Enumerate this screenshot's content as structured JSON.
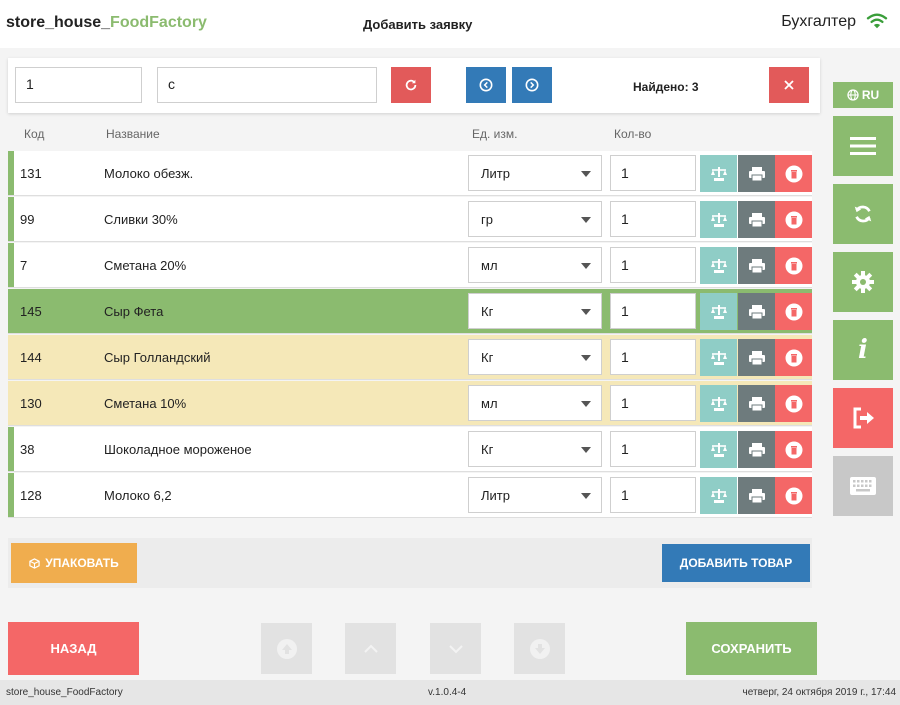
{
  "header": {
    "brand_part1": "store_house_",
    "brand_part2": "FoodFactory",
    "title": "Добавить заявку",
    "user": "Бухгалтер",
    "wifi_icon": "wifi-icon"
  },
  "search": {
    "code_value": "1",
    "name_value": "с",
    "found": "Найдено: 3",
    "icons": [
      "refresh-icon",
      "circle-arrow-left-icon",
      "circle-arrow-right-icon",
      "close-icon"
    ]
  },
  "side_panel": {
    "lang": "RU",
    "buttons": [
      "menu-icon",
      "sync-icon",
      "gear-icon",
      "info-icon",
      "logout-icon",
      "keyboard-icon"
    ]
  },
  "table": {
    "headers": {
      "code": "Код",
      "name": "Название",
      "unit": "Ед. изм.",
      "qty": "Кол-во"
    },
    "rows": [
      {
        "code": "131",
        "name": "Молоко обезж.",
        "unit": "Литр",
        "qty": "1",
        "state": "normal"
      },
      {
        "code": "99",
        "name": "Сливки 30%",
        "unit": "гр",
        "qty": "1",
        "state": "normal"
      },
      {
        "code": "7",
        "name": "Сметана 20%",
        "unit": "мл",
        "qty": "1",
        "state": "normal"
      },
      {
        "code": "145",
        "name": "Сыр Фета",
        "unit": "Кг",
        "qty": "1",
        "state": "selected"
      },
      {
        "code": "144",
        "name": "Сыр Голландский",
        "unit": "Кг",
        "qty": "1",
        "state": "highlight"
      },
      {
        "code": "130",
        "name": "Сметана 10%",
        "unit": "мл",
        "qty": "1",
        "state": "highlight"
      },
      {
        "code": "38",
        "name": "Шоколадное мороженое",
        "unit": "Кг",
        "qty": "1",
        "state": "normal"
      },
      {
        "code": "128",
        "name": "Молоко 6,2",
        "unit": "Литр",
        "qty": "1",
        "state": "normal"
      }
    ]
  },
  "actions": {
    "pack": "УПАКОВАТЬ",
    "add_product": "ДОБАВИТЬ ТОВАР",
    "back": "НАЗАД",
    "save": "СОХРАНИТЬ"
  },
  "status": {
    "left": "store_house_FoodFactory",
    "version": "v.1.0.4-4",
    "datetime": "четверг, 24 октября 2019 г., 17:44"
  },
  "colors": {
    "green": "#8bbb6f",
    "red": "#f46767",
    "blue": "#337ab7",
    "orange": "#f0ad4e",
    "teal": "#8fcdc6",
    "gray": "#6e7b7d",
    "gray_light": "#c8c8c8",
    "highlight_row": "#f5e8b8",
    "selected_row": "#8bbb6f"
  }
}
